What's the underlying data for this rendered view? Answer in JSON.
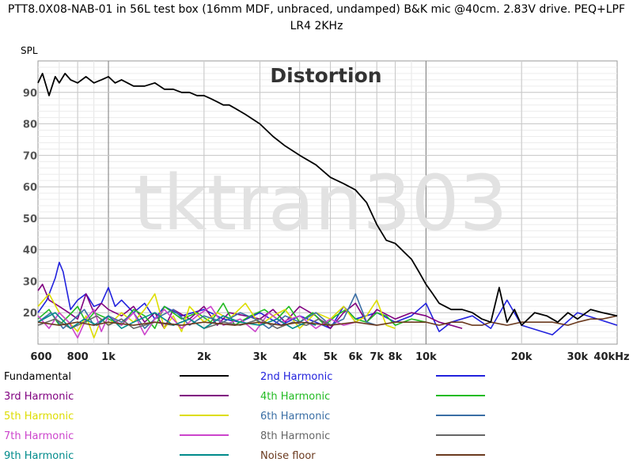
{
  "title_line1": "PTT8.0X08-NAB-01 in 56L test box (16mm MDF, unbraced, undamped) B&K mic @40cm. 2.83V drive. PEQ+LPF",
  "title_line2": "LR4 2KHz",
  "chart_data": {
    "type": "line",
    "title": "Distortion",
    "ylabel": "SPL",
    "watermark": "tktran303",
    "x_scale": "log",
    "xlim": [
      600,
      40000
    ],
    "ylim": [
      10,
      100
    ],
    "grid": true,
    "x_ticks": [
      {
        "value": 600,
        "label": "600"
      },
      {
        "value": 800,
        "label": "800"
      },
      {
        "value": 1000,
        "label": "1k"
      },
      {
        "value": 2000,
        "label": "2k"
      },
      {
        "value": 3000,
        "label": "3k"
      },
      {
        "value": 4000,
        "label": "4k"
      },
      {
        "value": 5000,
        "label": "5k"
      },
      {
        "value": 6000,
        "label": "6k"
      },
      {
        "value": 7000,
        "label": "7k"
      },
      {
        "value": 8000,
        "label": "8k"
      },
      {
        "value": 10000,
        "label": "10k"
      },
      {
        "value": 20000,
        "label": "20k"
      },
      {
        "value": 30000,
        "label": "30k"
      },
      {
        "value": 40000,
        "label": "40kHz"
      }
    ],
    "y_ticks": [
      20,
      30,
      40,
      50,
      60,
      70,
      80,
      90
    ],
    "series": [
      {
        "name": "Fundamental",
        "color": "#000000",
        "x": [
          600,
          620,
          650,
          680,
          700,
          730,
          760,
          800,
          850,
          900,
          950,
          1000,
          1050,
          1100,
          1200,
          1300,
          1400,
          1500,
          1600,
          1700,
          1800,
          1900,
          2000,
          2100,
          2200,
          2300,
          2400,
          2500,
          2700,
          3000,
          3300,
          3600,
          4000,
          4500,
          5000,
          5500,
          6000,
          6500,
          7000,
          7500,
          8000,
          9000,
          9500,
          10000,
          10500,
          11000,
          12000,
          13000,
          14000,
          15000,
          16000,
          17000,
          18000,
          19000,
          20000,
          22000,
          24000,
          26000,
          28000,
          30000,
          33000,
          36000,
          40000
        ],
        "y": [
          93,
          96,
          89,
          95,
          93,
          96,
          94,
          93,
          95,
          93,
          94,
          95,
          93,
          94,
          92,
          92,
          93,
          91,
          91,
          90,
          90,
          89,
          89,
          88,
          87,
          86,
          86,
          85,
          83,
          80,
          76,
          73,
          70,
          67,
          63,
          61,
          59,
          55,
          48,
          43,
          42,
          37,
          33,
          29,
          26,
          23,
          21,
          21,
          20,
          18,
          17,
          28,
          17,
          21,
          16,
          20,
          19,
          17,
          20,
          18,
          21,
          20,
          19
        ]
      },
      {
        "name": "2nd Harmonic",
        "color": "#2222dd",
        "x": [
          600,
          640,
          680,
          700,
          720,
          760,
          800,
          850,
          900,
          950,
          1000,
          1050,
          1100,
          1200,
          1300,
          1400,
          1500,
          1700,
          2000,
          2300,
          2600,
          3000,
          3500,
          4000,
          4500,
          5000,
          5500,
          6000,
          7000,
          8000,
          9000,
          10000,
          11000,
          12000,
          14000,
          16000,
          18000,
          20000,
          25000,
          30000,
          40000
        ],
        "y": [
          20,
          24,
          31,
          36,
          33,
          21,
          24,
          26,
          22,
          23,
          28,
          22,
          24,
          20,
          23,
          18,
          22,
          19,
          21,
          18,
          17,
          20,
          16,
          19,
          17,
          15,
          22,
          18,
          20,
          17,
          19,
          23,
          14,
          17,
          19,
          15,
          24,
          16,
          13,
          20,
          16
        ]
      },
      {
        "name": "3rd Harmonic",
        "color": "#800080",
        "x": [
          600,
          620,
          650,
          700,
          750,
          800,
          850,
          900,
          950,
          1000,
          1100,
          1200,
          1300,
          1400,
          1500,
          1600,
          1800,
          2000,
          2200,
          2400,
          2700,
          3000,
          3300,
          3600,
          4000,
          4500,
          5000,
          5500,
          6000,
          6500,
          7000,
          8000,
          9000,
          10000,
          11000,
          12000,
          13000
        ],
        "y": [
          27,
          29,
          24,
          22,
          20,
          18,
          26,
          20,
          23,
          21,
          19,
          22,
          17,
          20,
          15,
          21,
          18,
          22,
          16,
          20,
          19,
          18,
          21,
          17,
          22,
          19,
          15,
          20,
          23,
          17,
          21,
          18,
          20,
          19,
          17,
          16,
          15
        ]
      },
      {
        "name": "4th Harmonic",
        "color": "#22bb22",
        "x": [
          600,
          650,
          700,
          750,
          800,
          850,
          900,
          1000,
          1100,
          1200,
          1300,
          1400,
          1500,
          1700,
          1900,
          2100,
          2300,
          2500,
          2800,
          3100,
          3400,
          3700,
          4000,
          4400,
          4800,
          5200,
          5600,
          6000,
          6500,
          7000,
          7500,
          8000,
          9000,
          10000
        ],
        "y": [
          18,
          21,
          16,
          19,
          22,
          17,
          20,
          18,
          16,
          21,
          19,
          15,
          22,
          18,
          20,
          17,
          23,
          16,
          19,
          21,
          18,
          22,
          17,
          20,
          16,
          19,
          21,
          18,
          17,
          20,
          19,
          16,
          18,
          17
        ]
      },
      {
        "name": "5th Harmonic",
        "color": "#dddd00",
        "x": [
          600,
          650,
          700,
          750,
          800,
          850,
          900,
          950,
          1000,
          1100,
          1200,
          1300,
          1400,
          1500,
          1600,
          1700,
          1800,
          2000,
          2200,
          2400,
          2700,
          3000,
          3300,
          3600,
          4000,
          4500,
          5000,
          5500,
          6000,
          6500,
          7000,
          7500,
          8000
        ],
        "y": [
          22,
          26,
          20,
          17,
          14,
          19,
          12,
          18,
          16,
          20,
          17,
          21,
          26,
          15,
          19,
          14,
          22,
          17,
          20,
          18,
          23,
          16,
          19,
          21,
          15,
          20,
          18,
          22,
          17,
          19,
          24,
          16,
          15
        ]
      },
      {
        "name": "6th Harmonic",
        "color": "#3a6ea5",
        "x": [
          600,
          660,
          720,
          780,
          840,
          900,
          1000,
          1100,
          1200,
          1300,
          1400,
          1600,
          1800,
          2000,
          2300,
          2600,
          2900,
          3200,
          3600,
          4000,
          4500,
          5000,
          5500,
          6000,
          6500,
          7000
        ],
        "y": [
          17,
          20,
          15,
          18,
          21,
          16,
          19,
          17,
          20,
          15,
          18,
          21,
          16,
          19,
          17,
          20,
          18,
          15,
          19,
          17,
          20,
          16,
          18,
          26,
          17,
          16
        ]
      },
      {
        "name": "7th Harmonic",
        "color": "#cc44cc",
        "x": [
          600,
          650,
          700,
          750,
          800,
          850,
          900,
          950,
          1000,
          1100,
          1200,
          1300,
          1400,
          1500,
          1700,
          1900,
          2100,
          2300,
          2600,
          2900,
          3200,
          3500,
          4000,
          4500,
          5000,
          5500,
          6000
        ],
        "y": [
          19,
          15,
          20,
          17,
          12,
          18,
          21,
          14,
          19,
          16,
          20,
          13,
          18,
          21,
          15,
          19,
          22,
          16,
          18,
          14,
          20,
          17,
          19,
          15,
          18,
          16,
          17
        ]
      },
      {
        "name": "8th Harmonic",
        "color": "#666666",
        "x": [
          600,
          680,
          760,
          840,
          920,
          1000,
          1100,
          1200,
          1400,
          1600,
          1800,
          2000,
          2300,
          2600,
          3000,
          3400,
          3800,
          4200,
          4600,
          5000
        ],
        "y": [
          16,
          18,
          15,
          17,
          19,
          16,
          18,
          15,
          17,
          16,
          18,
          15,
          17,
          16,
          18,
          15,
          17,
          16,
          18,
          16
        ]
      },
      {
        "name": "9th Harmonic",
        "color": "#008b8b",
        "x": [
          600,
          680,
          760,
          840,
          920,
          1000,
          1100,
          1200,
          1400,
          1600,
          1800,
          2000,
          2300,
          2600,
          3000,
          3400,
          3800,
          4200,
          4500
        ],
        "y": [
          17,
          20,
          15,
          18,
          16,
          19,
          15,
          17,
          20,
          16,
          18,
          15,
          19,
          17,
          16,
          18,
          15,
          17,
          16
        ]
      },
      {
        "name": "Noise floor",
        "color": "#6b3a1f",
        "x": [
          600,
          700,
          800,
          900,
          1000,
          1200,
          1400,
          1700,
          2000,
          2500,
          3000,
          3500,
          4000,
          5000,
          6000,
          7000,
          8000,
          9000,
          10000,
          11000,
          12000,
          13000,
          14000,
          15000,
          16000,
          18000,
          20000,
          22000,
          25000,
          28000,
          30000,
          33000,
          36000,
          40000
        ],
        "y": [
          17,
          16,
          17,
          16,
          17,
          16,
          17,
          16,
          17,
          16,
          17,
          16,
          17,
          16,
          17,
          16,
          17,
          17,
          17,
          16,
          17,
          17,
          16,
          16,
          17,
          16,
          17,
          17,
          17,
          16,
          17,
          18,
          18,
          19
        ]
      }
    ]
  }
}
